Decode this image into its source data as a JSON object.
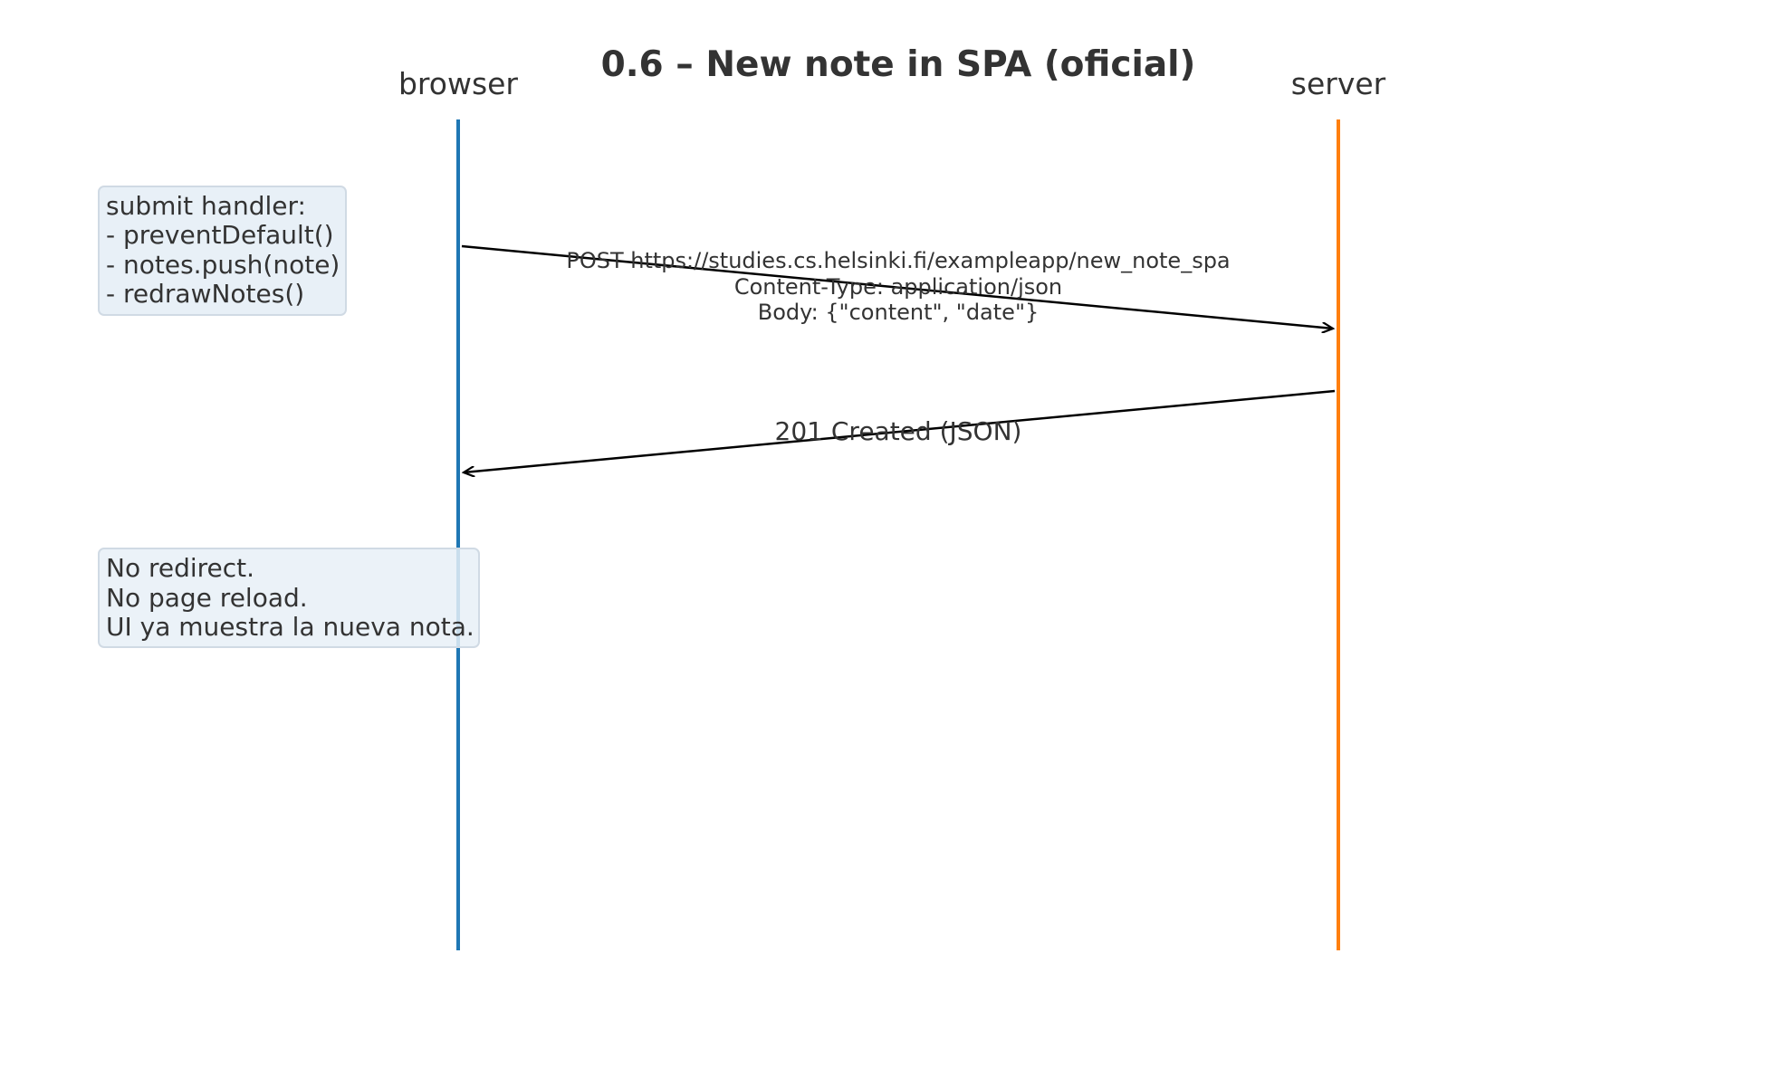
{
  "title": "0.6 – New note in SPA (oficial)",
  "actors": {
    "browser": {
      "label": "browser",
      "color": "#1f77b4"
    },
    "server": {
      "label": "server",
      "color": "#ff7f0e"
    }
  },
  "messages": [
    {
      "from": "browser",
      "to": "server",
      "lines": [
        "POST https://studies.cs.helsinki.fi/exampleapp/new_note_spa",
        "Content-Type: application/json",
        "Body: {\"content\", \"date\"}"
      ]
    },
    {
      "from": "server",
      "to": "browser",
      "lines": [
        "201 Created (JSON)"
      ]
    }
  ],
  "notes": [
    {
      "lines": [
        "submit handler:",
        "- preventDefault()",
        "- notes.push(note)",
        "- redrawNotes()"
      ]
    },
    {
      "lines": [
        "No redirect.",
        "No page reload.",
        "UI ya muestra la nueva nota."
      ]
    }
  ],
  "colors": {
    "note_fill": "#e8f0f7",
    "note_border": "#d0dae4",
    "arrow": "#000000",
    "text": "#333333"
  }
}
